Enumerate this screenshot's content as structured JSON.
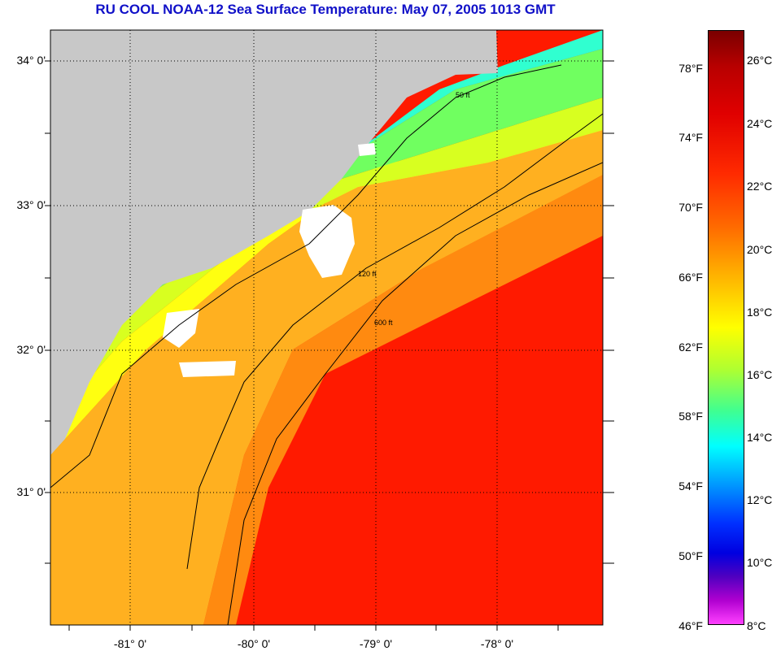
{
  "title": "RU COOL  NOAA-12  Sea Surface Temperature:  May 07, 2005 1013 GMT",
  "lat_labels": [
    "34° 0'",
    "33° 0'",
    "32° 0'",
    "31° 0'"
  ],
  "lon_labels": [
    "-81° 0'",
    "-80° 0'",
    "-79° 0'",
    "-78° 0'"
  ],
  "colorbar": {
    "fahrenheit": [
      "78°F",
      "74°F",
      "70°F",
      "66°F",
      "62°F",
      "58°F",
      "54°F",
      "50°F",
      "46°F"
    ],
    "celsius": [
      "26°C",
      "24°C",
      "22°C",
      "20°C",
      "18°C",
      "16°C",
      "14°C",
      "12°C",
      "10°C",
      "8°C"
    ]
  },
  "contour_labels": [
    "50 ft",
    "120 ft",
    "600 ft"
  ],
  "colors": {
    "title": "#1010c8",
    "land": "#c8c8c8",
    "cloud": "#ffffff"
  }
}
